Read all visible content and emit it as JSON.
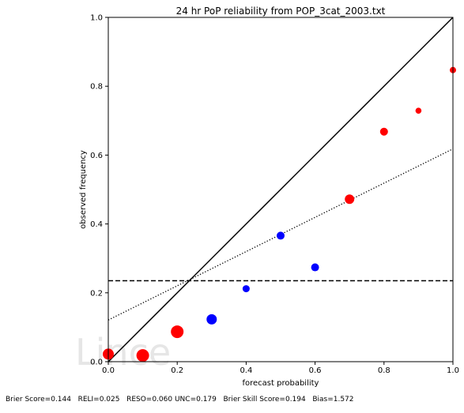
{
  "chart_data": {
    "type": "scatter",
    "title": "24 hr PoP reliability from POP_3cat_2003.txt",
    "xlabel": "forecast probability",
    "ylabel": "observed frequency",
    "xlim": [
      0,
      1
    ],
    "ylim": [
      0,
      1
    ],
    "xticks": [
      "0.0",
      "0.2",
      "0.4",
      "0.6",
      "0.8",
      "1.0"
    ],
    "yticks": [
      "0.0",
      "0.2",
      "0.4",
      "0.6",
      "0.8",
      "1.0"
    ],
    "grid": false,
    "legend": "none",
    "points": [
      {
        "x": 0.0,
        "y": 0.022,
        "color": "#ff0000",
        "size": 7
      },
      {
        "x": 0.1,
        "y": 0.018,
        "color": "#ff0000",
        "size": 8
      },
      {
        "x": 0.2,
        "y": 0.087,
        "color": "#ff0000",
        "size": 8
      },
      {
        "x": 0.3,
        "y": 0.123,
        "color": "#0000ff",
        "size": 6.5
      },
      {
        "x": 0.4,
        "y": 0.212,
        "color": "#0000ff",
        "size": 4.5
      },
      {
        "x": 0.5,
        "y": 0.366,
        "color": "#0000ff",
        "size": 5
      },
      {
        "x": 0.6,
        "y": 0.274,
        "color": "#0000ff",
        "size": 5
      },
      {
        "x": 0.7,
        "y": 0.472,
        "color": "#ff0000",
        "size": 6
      },
      {
        "x": 0.8,
        "y": 0.668,
        "color": "#ff0000",
        "size": 5
      },
      {
        "x": 0.9,
        "y": 0.729,
        "color": "#ff0000",
        "size": 3.8
      },
      {
        "x": 1.0,
        "y": 0.847,
        "color": "#ff0000",
        "size": 4
      }
    ],
    "lines": [
      {
        "kind": "perfect-reliability",
        "style": "solid",
        "x": [
          0,
          1
        ],
        "y": [
          0,
          1
        ]
      },
      {
        "kind": "climatology",
        "style": "dashed",
        "x": [
          0,
          1
        ],
        "y": [
          0.235,
          0.235
        ]
      },
      {
        "kind": "fit",
        "style": "dotted",
        "x": [
          0,
          1
        ],
        "y": [
          0.121,
          0.618
        ]
      }
    ],
    "watermark": "Lince",
    "footer": "Brier Score=0.144   RELI=0.025   RESO=0.060 UNC=0.179   Brier Skill Score=0.194   Bias=1.572"
  }
}
